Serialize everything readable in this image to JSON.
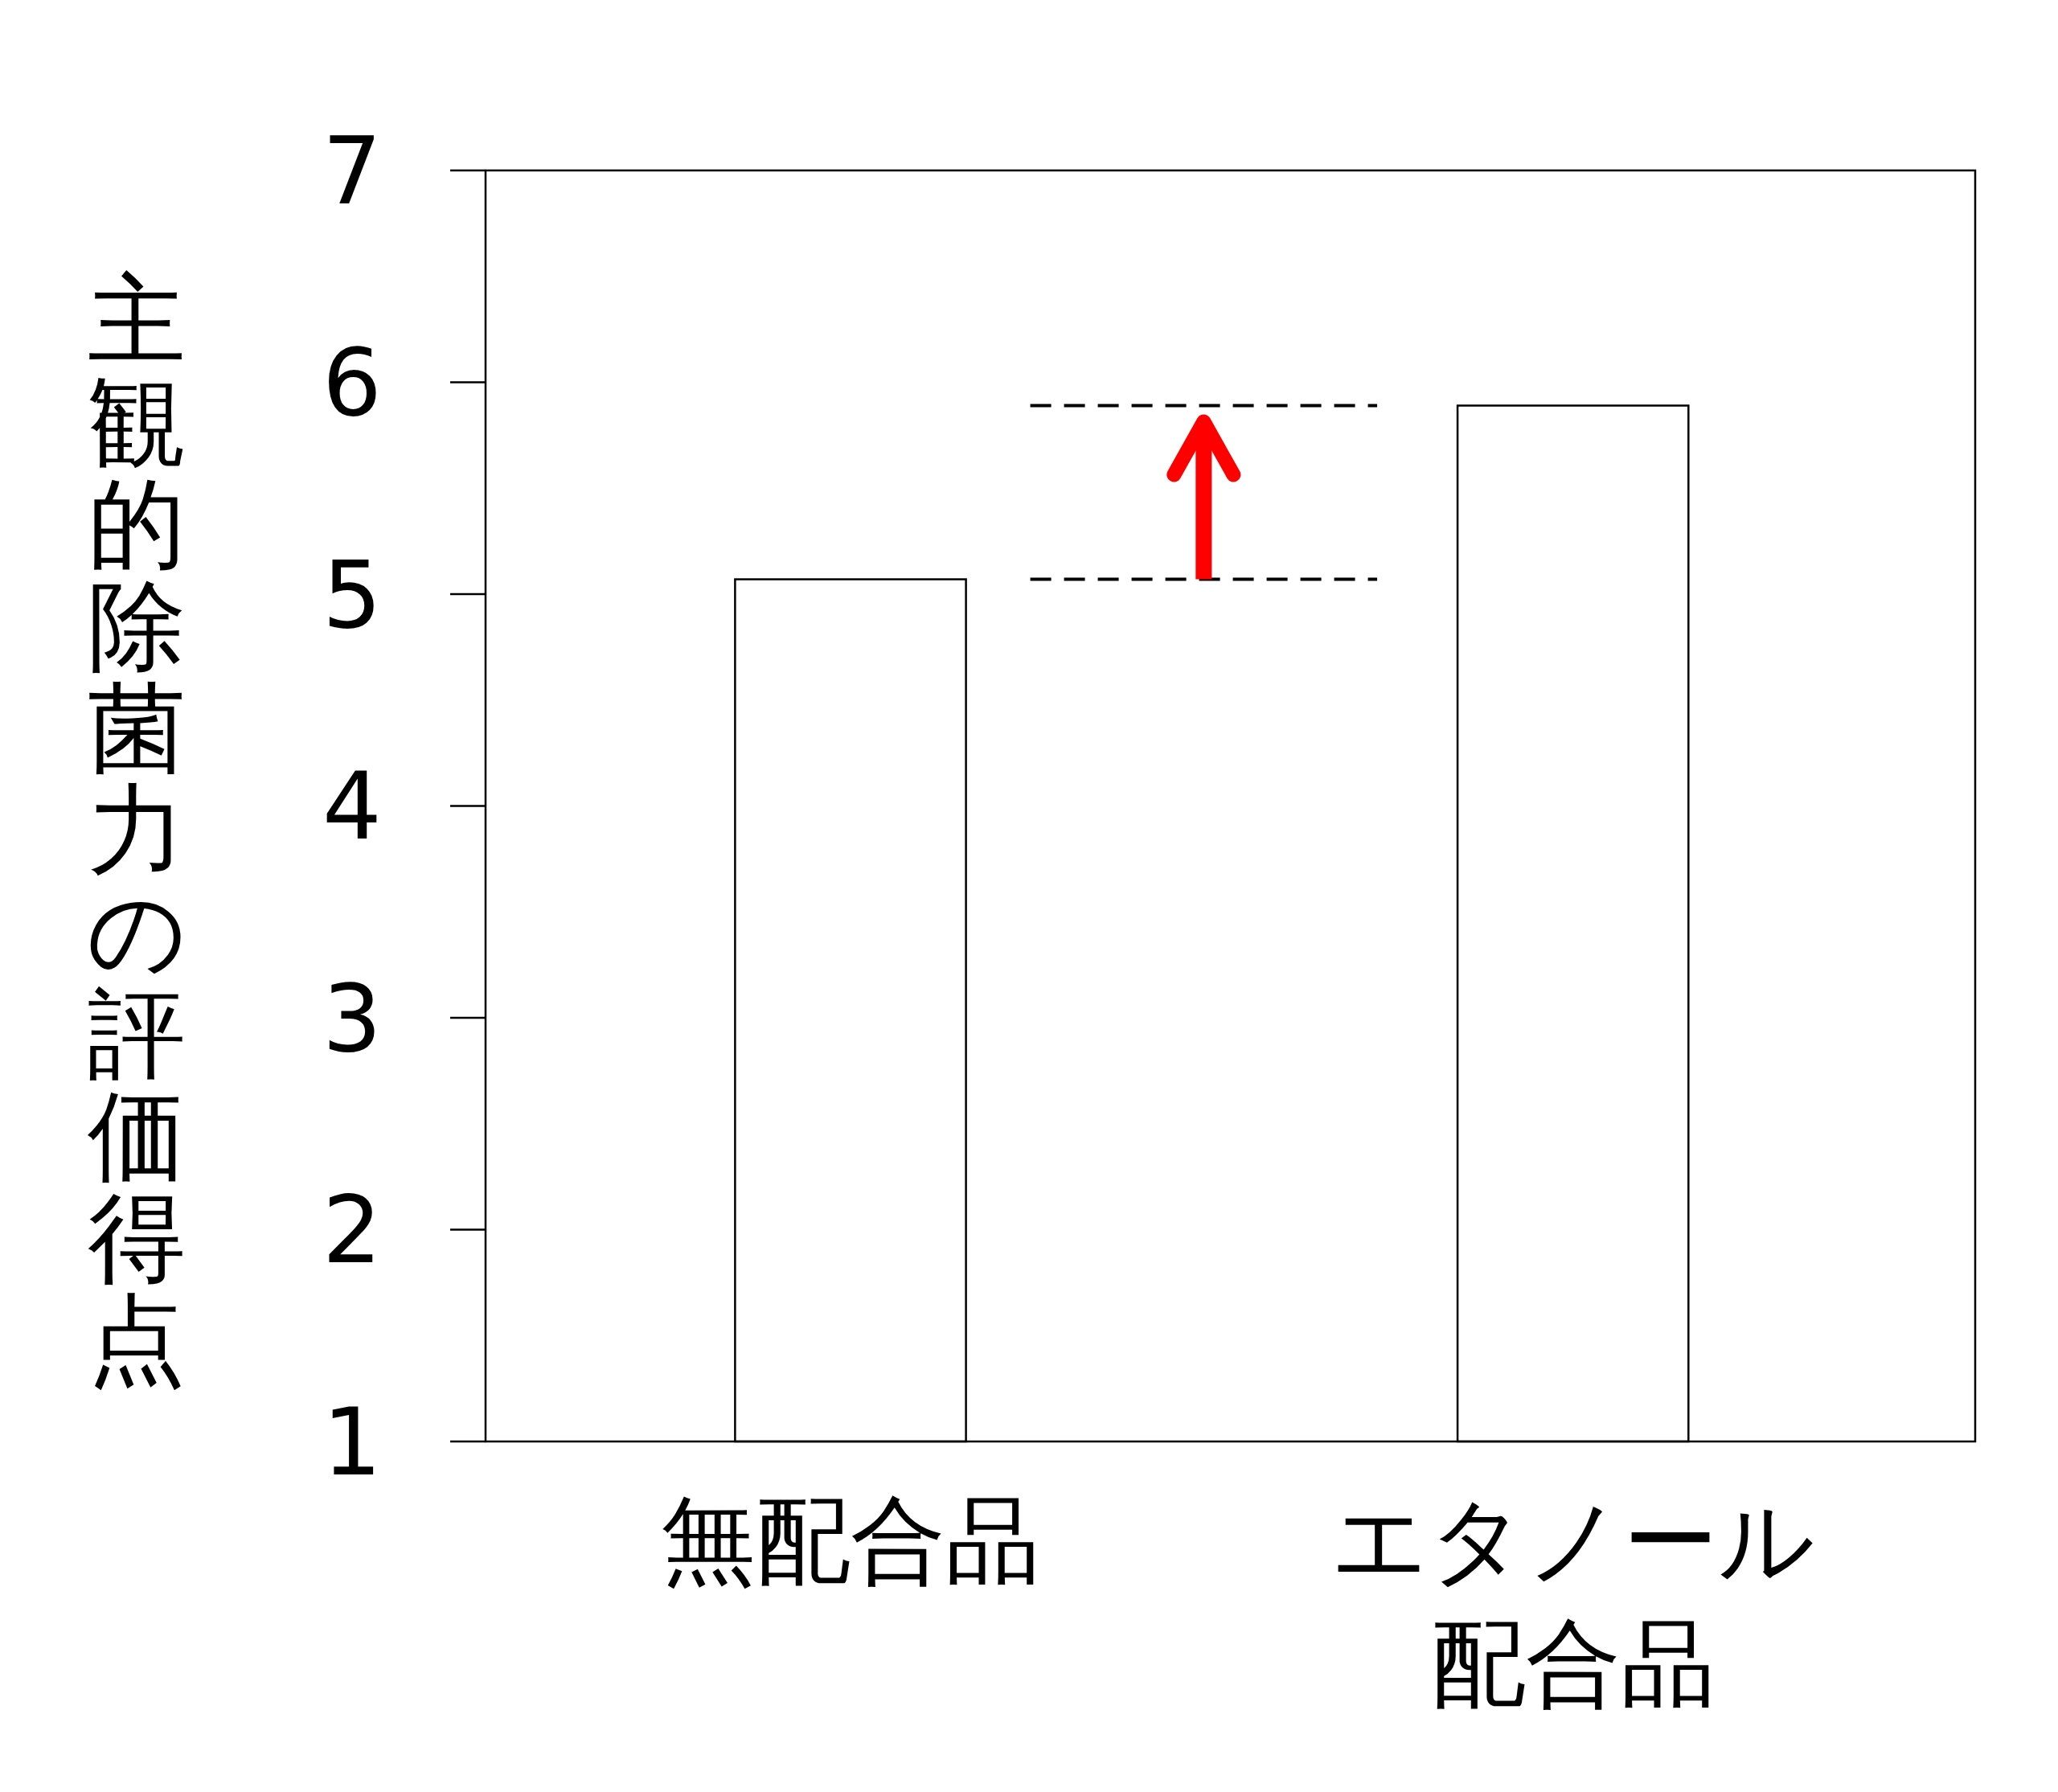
{
  "chart_data": {
    "type": "bar",
    "ylabel": "主観的除菌力の評価得点",
    "categories": [
      "無配合品",
      "エタノール配合品"
    ],
    "values": [
      5.07,
      5.89
    ],
    "color": "#ffffff",
    "ylim": [
      1,
      7
    ],
    "yticks": [
      1,
      2,
      3,
      4,
      5,
      6,
      7
    ],
    "grid": false,
    "ref_lines": [
      {
        "axis": "y",
        "value": 5.07,
        "color": "#000000",
        "line_style": "dashed"
      },
      {
        "axis": "y",
        "value": 5.89,
        "color": "#000000",
        "line_style": "dashed"
      }
    ]
  }
}
